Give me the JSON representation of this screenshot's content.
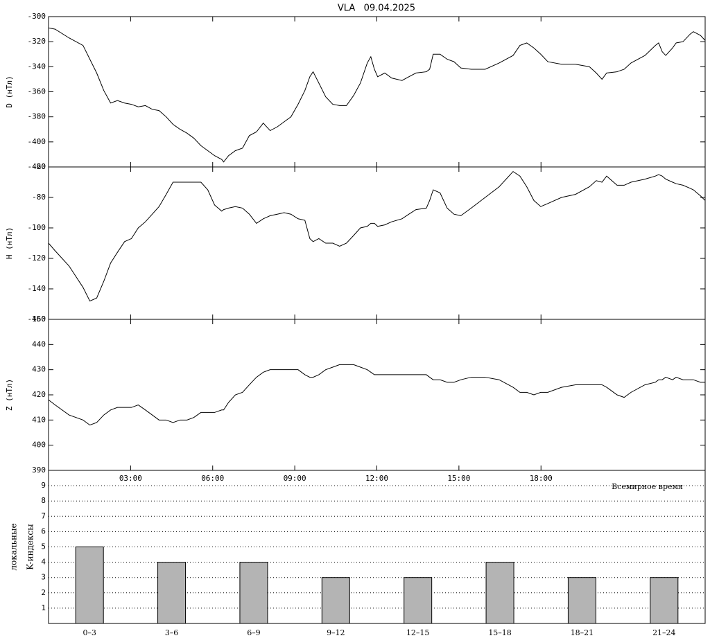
{
  "chart_data": [
    {
      "type": "line",
      "title": "VLA   09.04.2025",
      "ylabel": "D (нТл)",
      "xlim": [
        0,
        24
      ],
      "ylim": [
        -420,
        -300
      ],
      "yticks": [
        -300,
        -320,
        -340,
        -360,
        -380,
        -400,
        -420
      ],
      "color": "#000000",
      "x": [
        0,
        0.24,
        0.75,
        1.26,
        1.51,
        1.76,
        2.02,
        2.27,
        2.52,
        2.78,
        3.03,
        3.28,
        3.54,
        3.79,
        4.04,
        4.3,
        4.55,
        4.81,
        5.06,
        5.31,
        5.57,
        5.82,
        6.07,
        6.33,
        6.4,
        6.58,
        6.83,
        7.09,
        7.34,
        7.6,
        7.85,
        8.1,
        8.36,
        8.61,
        8.86,
        9.12,
        9.37,
        9.55,
        9.67,
        9.88,
        10.13,
        10.39,
        10.64,
        10.89,
        11.15,
        11.4,
        11.65,
        11.78,
        11.91,
        12.03,
        12.29,
        12.54,
        12.92,
        13.17,
        13.43,
        13.81,
        13.93,
        14.06,
        14.31,
        14.57,
        14.82,
        15.07,
        15.45,
        15.96,
        16.47,
        16.98,
        17.23,
        17.48,
        17.74,
        17.99,
        18.25,
        18.75,
        19.26,
        19.77,
        20.02,
        20.23,
        20.4,
        20.78,
        21.04,
        21.29,
        21.8,
        22.18,
        22.3,
        22.43,
        22.56,
        22.81,
        22.94,
        23.19,
        23.45,
        23.57,
        23.83,
        24
      ],
      "values": [
        -309,
        -310,
        -317,
        -323,
        -334,
        -345,
        -359,
        -369,
        -367,
        -369,
        -370,
        -372,
        -371,
        -374,
        -375,
        -380,
        -386,
        -390,
        -393,
        -397,
        -403,
        -407,
        -411,
        -414,
        -416,
        -411,
        -407,
        -405,
        -395,
        -392,
        -385,
        -391,
        -388,
        -384,
        -380,
        -370,
        -359,
        -348,
        -344,
        -353,
        -364,
        -370,
        -371,
        -371,
        -363,
        -353,
        -337,
        -332,
        -342,
        -348,
        -345,
        -349,
        -351,
        -348,
        -345,
        -344,
        -342,
        -330,
        -330,
        -334,
        -336,
        -341,
        -342,
        -342,
        -337,
        -331,
        -323,
        -321,
        -325,
        -330,
        -336,
        -338,
        -338,
        -340,
        -345,
        -350,
        -345,
        -344,
        -342,
        -337,
        -331,
        -323,
        -321,
        -328,
        -331,
        -325,
        -321,
        -320,
        -314,
        -312,
        -315,
        -319
      ]
    },
    {
      "type": "line",
      "ylabel": "H (нТл)",
      "xlim": [
        0,
        24
      ],
      "ylim": [
        -160,
        -60
      ],
      "yticks": [
        -60,
        -80,
        -100,
        -120,
        -140,
        -160
      ],
      "color": "#000000",
      "x": [
        0,
        0.24,
        0.75,
        1.26,
        1.51,
        1.76,
        2.02,
        2.27,
        2.52,
        2.78,
        3.03,
        3.28,
        3.54,
        3.79,
        4.04,
        4.3,
        4.55,
        4.81,
        5.06,
        5.31,
        5.57,
        5.82,
        6.07,
        6.33,
        6.4,
        6.58,
        6.83,
        7.09,
        7.34,
        7.6,
        7.85,
        8.1,
        8.36,
        8.61,
        8.86,
        9.12,
        9.37,
        9.55,
        9.67,
        9.88,
        10.13,
        10.39,
        10.64,
        10.89,
        11.15,
        11.4,
        11.65,
        11.78,
        11.91,
        12.03,
        12.29,
        12.54,
        12.92,
        13.17,
        13.43,
        13.81,
        13.93,
        14.06,
        14.31,
        14.57,
        14.82,
        15.07,
        15.45,
        15.96,
        16.47,
        16.98,
        17.23,
        17.48,
        17.74,
        17.99,
        18.25,
        18.75,
        19.26,
        19.77,
        20.02,
        20.23,
        20.4,
        20.78,
        21.04,
        21.29,
        21.8,
        22.18,
        22.3,
        22.43,
        22.56,
        22.81,
        22.94,
        23.19,
        23.45,
        23.57,
        23.83,
        24
      ],
      "values": [
        -110,
        -115,
        -125,
        -139,
        -148,
        -146,
        -135,
        -123,
        -116,
        -109,
        -107,
        -100,
        -96,
        -91,
        -86,
        -78,
        -70,
        -70,
        -70,
        -70,
        -70,
        -75,
        -85,
        -89,
        -88,
        -87,
        -86,
        -87,
        -91,
        -97,
        -94,
        -92,
        -91,
        -90,
        -91,
        -94,
        -95,
        -107,
        -109,
        -107,
        -110,
        -110,
        -112,
        -110,
        -105,
        -100,
        -99,
        -97,
        -97,
        -99,
        -98,
        -96,
        -94,
        -91,
        -88,
        -87,
        -82,
        -75,
        -77,
        -87,
        -91,
        -92,
        -87,
        -80,
        -73,
        -63,
        -66,
        -73,
        -82,
        -86,
        -84,
        -80,
        -78,
        -73,
        -69,
        -70,
        -66,
        -72,
        -72,
        -70,
        -68,
        -66,
        -65,
        -66,
        -68,
        -70,
        -71,
        -72,
        -74,
        -75,
        -79,
        -82
      ]
    },
    {
      "type": "line",
      "ylabel": "Z (нТл)",
      "xlabel": "Всемирное время",
      "xlim": [
        0,
        24
      ],
      "ylim": [
        390,
        450
      ],
      "yticks": [
        390,
        400,
        410,
        420,
        430,
        440,
        450
      ],
      "color": "#000000",
      "xticks": [
        {
          "value": 3,
          "label": "03:00"
        },
        {
          "value": 6,
          "label": "06:00"
        },
        {
          "value": 9,
          "label": "09:00"
        },
        {
          "value": 12,
          "label": "12:00"
        },
        {
          "value": 15,
          "label": "15:00"
        },
        {
          "value": 18,
          "label": "18:00"
        }
      ],
      "x": [
        0,
        0.24,
        0.75,
        1.26,
        1.51,
        1.76,
        2.02,
        2.27,
        2.52,
        2.78,
        3.03,
        3.28,
        3.54,
        3.79,
        4.04,
        4.3,
        4.55,
        4.81,
        5.06,
        5.31,
        5.57,
        5.82,
        6.07,
        6.33,
        6.4,
        6.58,
        6.83,
        7.09,
        7.34,
        7.6,
        7.85,
        8.1,
        8.36,
        8.61,
        8.86,
        9.12,
        9.37,
        9.55,
        9.67,
        9.88,
        10.13,
        10.39,
        10.64,
        10.89,
        11.15,
        11.4,
        11.65,
        11.78,
        11.91,
        12.03,
        12.29,
        12.54,
        12.92,
        13.17,
        13.43,
        13.81,
        13.93,
        14.06,
        14.31,
        14.57,
        14.82,
        15.07,
        15.45,
        15.96,
        16.47,
        16.98,
        17.23,
        17.48,
        17.74,
        17.99,
        18.25,
        18.75,
        19.26,
        19.77,
        20.02,
        20.23,
        20.4,
        20.78,
        21.04,
        21.29,
        21.8,
        22.18,
        22.3,
        22.43,
        22.56,
        22.81,
        22.94,
        23.19,
        23.45,
        23.57,
        23.83,
        24
      ],
      "values": [
        418,
        416,
        412,
        410,
        408,
        409,
        412,
        414,
        415,
        415,
        415,
        416,
        414,
        412,
        410,
        410,
        409,
        410,
        410,
        411,
        413,
        413,
        413,
        414,
        414,
        417,
        420,
        421,
        424,
        427,
        429,
        430,
        430,
        430,
        430,
        430,
        428,
        427,
        427,
        428,
        430,
        431,
        432,
        432,
        432,
        431,
        430,
        429,
        428,
        428,
        428,
        428,
        428,
        428,
        428,
        428,
        427,
        426,
        426,
        425,
        425,
        426,
        427,
        427,
        426,
        423,
        421,
        421,
        420,
        421,
        421,
        423,
        424,
        424,
        424,
        424,
        423,
        420,
        419,
        421,
        424,
        425,
        426,
        426,
        427,
        426,
        427,
        426,
        426,
        426,
        425,
        425
      ]
    },
    {
      "type": "bar",
      "ylabel": [
        "локальные",
        "K-индексы"
      ],
      "categories": [
        "0–3",
        "3–6",
        "6–9",
        "9–12",
        "12–15",
        "15–18",
        "18–21",
        "21–24"
      ],
      "values": [
        5,
        4,
        4,
        3,
        3,
        4,
        3,
        3
      ],
      "color": "#b4b4b4",
      "ylim": [
        0,
        10
      ],
      "yticks": [
        1,
        2,
        3,
        4,
        5,
        6,
        7,
        8,
        9
      ],
      "grid": true
    }
  ]
}
